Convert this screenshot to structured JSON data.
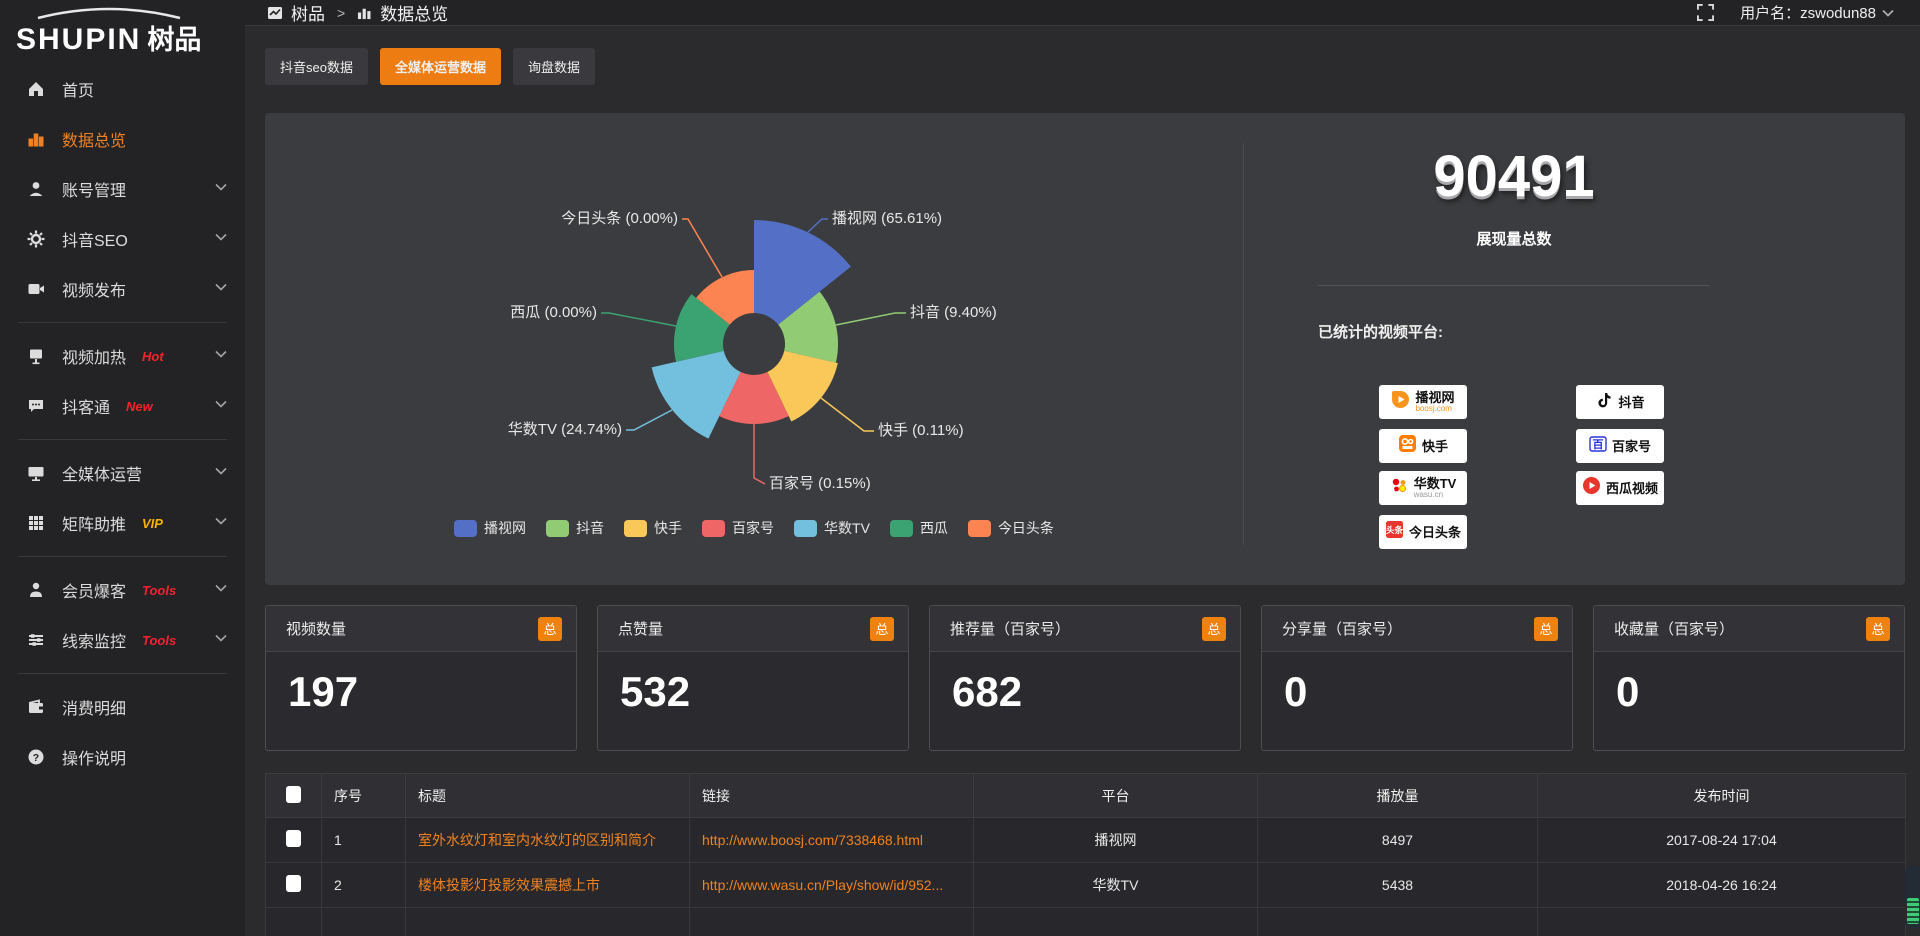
{
  "app": {
    "logo_en": "SHUPIN",
    "logo_cn": "树品"
  },
  "topbar": {
    "breadcrumb_root": "树品",
    "breadcrumb_sep": ">",
    "breadcrumb_current": "数据总览",
    "username": "用户名：zswodun88"
  },
  "sidebar": {
    "items": [
      {
        "label": "首页",
        "icon": "home"
      },
      {
        "label": "数据总览",
        "icon": "chart-bar",
        "active": true
      },
      {
        "label": "账号管理",
        "icon": "user",
        "chevron": true
      },
      {
        "label": "抖音SEO",
        "icon": "gear",
        "chevron": true
      },
      {
        "label": "视频发布",
        "icon": "video",
        "chevron": true,
        "divider_after": true
      },
      {
        "label": "视频加热",
        "icon": "heat",
        "badge": "Hot",
        "badge_color": "#f5222d",
        "chevron": true
      },
      {
        "label": "抖客通",
        "icon": "chat",
        "badge": "New",
        "badge_color": "#f5222d",
        "chevron": true,
        "divider_after": true
      },
      {
        "label": "全媒体运营",
        "icon": "screen",
        "chevron": true
      },
      {
        "label": "矩阵助推",
        "icon": "grid",
        "badge": "VIP",
        "badge_color": "#f7b500",
        "chevron": true,
        "divider_after": true
      },
      {
        "label": "会员爆客",
        "icon": "person",
        "badge": "Tools",
        "badge_color": "#f5222d",
        "chevron": true
      },
      {
        "label": "线索监控",
        "icon": "sliders",
        "badge": "Tools",
        "badge_color": "#f5222d",
        "chevron": true,
        "divider_after": true
      },
      {
        "label": "消费明细",
        "icon": "wallet"
      },
      {
        "label": "操作说明",
        "icon": "question"
      }
    ]
  },
  "tabs": [
    {
      "label": "抖音seo数据"
    },
    {
      "label": "全媒体运营数据",
      "active": true
    },
    {
      "label": "询盘数据"
    }
  ],
  "chart_data": {
    "type": "pie",
    "subtype": "nightingale-rose",
    "legend_position": "bottom",
    "items": [
      {
        "name": "播视网",
        "percent": 65.61,
        "color": "#5470c6"
      },
      {
        "name": "抖音",
        "percent": 9.4,
        "color": "#91cc75"
      },
      {
        "name": "快手",
        "percent": 0.11,
        "color": "#fac858"
      },
      {
        "name": "百家号",
        "percent": 0.15,
        "color": "#ee6666"
      },
      {
        "name": "华数TV",
        "percent": 24.74,
        "color": "#73c0de"
      },
      {
        "name": "西瓜",
        "percent": 0.0,
        "color": "#3ba272"
      },
      {
        "name": "今日头条",
        "percent": 0.0,
        "color": "#fc8452"
      }
    ]
  },
  "summary": {
    "total_value": "90491",
    "total_label": "展现量总数",
    "platforms_label": "已统计的视频平台:",
    "platform_badges": [
      {
        "name": "播视网",
        "sub": "boosj.com",
        "sub_color": "#f7941d",
        "icon": "boosj"
      },
      {
        "name": "抖音",
        "icon": "douyin"
      },
      {
        "name": "快手",
        "icon": "kuaishou"
      },
      {
        "name": "百家号",
        "icon": "baijia"
      },
      {
        "name": "华数TV",
        "sub": "wasu.cn",
        "sub_color": "#999999",
        "icon": "wasu"
      },
      {
        "name": "西瓜视频",
        "icon": "xigua"
      },
      {
        "name": "今日头条",
        "icon": "toutiao"
      }
    ]
  },
  "stat_cards": [
    {
      "title": "视频数量",
      "badge": "总",
      "value": "197"
    },
    {
      "title": "点赞量",
      "badge": "总",
      "value": "532"
    },
    {
      "title": "推荐量（百家号）",
      "badge": "总",
      "value": "682"
    },
    {
      "title": "分享量（百家号）",
      "badge": "总",
      "value": "0"
    },
    {
      "title": "收藏量（百家号）",
      "badge": "总",
      "value": "0"
    }
  ],
  "table": {
    "headers": [
      "序号",
      "标题",
      "链接",
      "平台",
      "播放量",
      "发布时间"
    ],
    "rows": [
      {
        "no": "1",
        "title": "室外水纹灯和室内水纹灯的区别和简介",
        "link": "http://www.boosj.com/7338468.html",
        "platform": "播视网",
        "plays": "8497",
        "time": "2017-08-24 17:04"
      },
      {
        "no": "2",
        "title": "楼体投影灯投影效果震撼上市",
        "link": "http://www.wasu.cn/Play/show/id/952...",
        "platform": "华数TV",
        "plays": "5438",
        "time": "2018-04-26 16:24"
      },
      {
        "no": "",
        "title": "",
        "link": "",
        "platform": "",
        "plays": "",
        "time": ""
      }
    ]
  }
}
